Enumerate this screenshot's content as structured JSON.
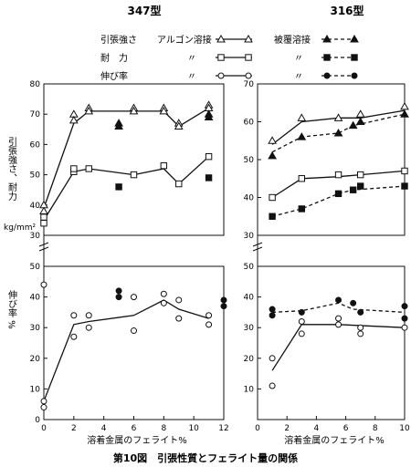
{
  "caption": "第10図　引張性質とフェライト量の関係",
  "legend": {
    "rows": [
      {
        "property": "引張強さ",
        "ditto": "",
        "method_left": "アルゴン溶接",
        "method_right": "被覆溶接"
      },
      {
        "property": "耐　力",
        "ditto": "〃",
        "method_left": "",
        "method_right": "〃"
      },
      {
        "property": "伸び率",
        "ditto": "〃",
        "method_left": "",
        "method_right": "〃"
      }
    ]
  },
  "chart_data": [
    {
      "type": "line",
      "title": "347型",
      "xlabel": "溶着金属のフェライト%",
      "ylabel_upper": "引張強さ、耐力",
      "ylabel_unit": "kg/mm²",
      "ylabel_lower": "伸び率 %",
      "xlim": [
        0,
        12
      ],
      "x_ticks": [
        "0",
        "2",
        "4",
        "6",
        "8",
        "10",
        "12"
      ],
      "upper_ylim": [
        30,
        80
      ],
      "upper_y_ticks": [
        "30",
        "40",
        "50",
        "60",
        "70",
        "80"
      ],
      "lower_ylim": [
        0,
        50
      ],
      "lower_y_ticks": [
        "0",
        "10",
        "20",
        "30",
        "40",
        "50"
      ],
      "series": [
        {
          "name": "引張強さ",
          "method": "アルゴン溶接",
          "marker": "triangle-open",
          "line": "solid",
          "panel": "upper",
          "points": [
            [
              0,
              38
            ],
            [
              0,
              40
            ],
            [
              2,
              70
            ],
            [
              2,
              68
            ],
            [
              3,
              72
            ],
            [
              3,
              71
            ],
            [
              6,
              72
            ],
            [
              6,
              71
            ],
            [
              8,
              72
            ],
            [
              8,
              71
            ],
            [
              9,
              67
            ],
            [
              9,
              66
            ],
            [
              11,
              73
            ],
            [
              11,
              72
            ]
          ],
          "curve_x": [
            0,
            2,
            3,
            6,
            8,
            9,
            11
          ],
          "curve_y": [
            39,
            67,
            71,
            71,
            71,
            66,
            72
          ]
        },
        {
          "name": "引張強さ",
          "method": "被覆溶接",
          "marker": "triangle-filled",
          "line": "none",
          "panel": "upper",
          "points": [
            [
              5,
              67
            ],
            [
              5,
              66
            ],
            [
              11,
              70
            ],
            [
              11,
              69
            ]
          ]
        },
        {
          "name": "耐力",
          "method": "アルゴン溶接",
          "marker": "square-open",
          "line": "solid",
          "panel": "upper",
          "points": [
            [
              0,
              34
            ],
            [
              0,
              36
            ],
            [
              2,
              51
            ],
            [
              2,
              52
            ],
            [
              3,
              52
            ],
            [
              6,
              50
            ],
            [
              8,
              53
            ],
            [
              9,
              47
            ],
            [
              11,
              56
            ]
          ],
          "curve_x": [
            0,
            2,
            3,
            6,
            8,
            9,
            11
          ],
          "curve_y": [
            35,
            51,
            52,
            50,
            52,
            47,
            56
          ]
        },
        {
          "name": "耐力",
          "method": "被覆溶接",
          "marker": "square-filled",
          "line": "none",
          "panel": "upper",
          "points": [
            [
              5,
              46
            ],
            [
              11,
              49
            ]
          ]
        },
        {
          "name": "伸び率",
          "method": "アルゴン溶接",
          "marker": "circle-open",
          "line": "solid",
          "panel": "lower",
          "points": [
            [
              0,
              4
            ],
            [
              0,
              6
            ],
            [
              0,
              44
            ],
            [
              2,
              27
            ],
            [
              2,
              34
            ],
            [
              3,
              30
            ],
            [
              3,
              34
            ],
            [
              6,
              29
            ],
            [
              6,
              40
            ],
            [
              8,
              41
            ],
            [
              8,
              38
            ],
            [
              9,
              33
            ],
            [
              9,
              39
            ],
            [
              11,
              34
            ],
            [
              11,
              31
            ]
          ],
          "curve_x": [
            0,
            2,
            3,
            6,
            8,
            9,
            11
          ],
          "curve_y": [
            6,
            31,
            32,
            34,
            39,
            36,
            33
          ]
        },
        {
          "name": "伸び率",
          "method": "被覆溶接",
          "marker": "circle-filled",
          "line": "none",
          "panel": "lower",
          "points": [
            [
              5,
              42
            ],
            [
              5,
              40
            ],
            [
              12,
              39
            ],
            [
              12,
              37
            ]
          ]
        }
      ]
    },
    {
      "type": "line",
      "title": "316型",
      "xlabel": "溶着金属のフェライト%",
      "xlim": [
        0,
        10
      ],
      "x_ticks": [
        "0",
        "2",
        "4",
        "6",
        "8",
        "10"
      ],
      "upper_ylim": [
        30,
        70
      ],
      "upper_y_ticks": [
        "30",
        "40",
        "50",
        "60",
        "70"
      ],
      "lower_ylim": [
        0,
        50
      ],
      "lower_y_ticks": [
        "10",
        "20",
        "30",
        "40",
        "50"
      ],
      "series": [
        {
          "name": "引張強さ",
          "method": "アルゴン溶接",
          "marker": "triangle-open",
          "line": "solid",
          "panel": "upper",
          "points": [
            [
              1,
              55
            ],
            [
              3,
              61
            ],
            [
              5.5,
              61
            ],
            [
              7,
              62
            ],
            [
              10,
              64
            ]
          ],
          "curve_x": [
            1,
            3,
            5.5,
            7,
            10
          ],
          "curve_y": [
            54,
            60,
            61,
            61,
            63
          ]
        },
        {
          "name": "引張強さ",
          "method": "被覆溶接",
          "marker": "triangle-filled",
          "line": "dashed",
          "panel": "upper",
          "points": [
            [
              1,
              51
            ],
            [
              3,
              56
            ],
            [
              5.5,
              57
            ],
            [
              6.5,
              59
            ],
            [
              7,
              60
            ],
            [
              10,
              62
            ]
          ],
          "curve_x": [
            1,
            3,
            5.5,
            6.5,
            10
          ],
          "curve_y": [
            52,
            56,
            57,
            59,
            62
          ]
        },
        {
          "name": "耐力",
          "method": "アルゴン溶接",
          "marker": "square-open",
          "line": "solid",
          "panel": "upper",
          "points": [
            [
              1,
              40
            ],
            [
              3,
              45
            ],
            [
              5.5,
              46
            ],
            [
              7,
              46
            ],
            [
              10,
              47
            ]
          ],
          "curve_x": [
            1,
            3,
            5.5,
            7,
            10
          ],
          "curve_y": [
            40,
            45,
            45.5,
            46,
            47
          ]
        },
        {
          "name": "耐力",
          "method": "被覆溶接",
          "marker": "square-filled",
          "line": "dashed",
          "panel": "upper",
          "points": [
            [
              1,
              35
            ],
            [
              3,
              37
            ],
            [
              5.5,
              41
            ],
            [
              6.5,
              42
            ],
            [
              7,
              43
            ],
            [
              10,
              43
            ]
          ],
          "curve_x": [
            1,
            3,
            5.5,
            6.5,
            10
          ],
          "curve_y": [
            35,
            37,
            41,
            42,
            43
          ]
        },
        {
          "name": "伸び率",
          "method": "アルゴン溶接",
          "marker": "circle-open",
          "line": "solid",
          "panel": "lower",
          "points": [
            [
              1,
              11
            ],
            [
              1,
              20
            ],
            [
              3,
              28
            ],
            [
              3,
              32
            ],
            [
              5.5,
              31
            ],
            [
              5.5,
              33
            ],
            [
              7,
              28
            ],
            [
              7,
              30
            ],
            [
              10,
              30
            ]
          ],
          "curve_x": [
            1,
            3,
            5.5,
            10
          ],
          "curve_y": [
            16,
            31,
            31,
            30
          ]
        },
        {
          "name": "伸び率",
          "method": "被覆溶接",
          "marker": "circle-filled",
          "line": "dashed",
          "panel": "lower",
          "points": [
            [
              1,
              36
            ],
            [
              1,
              34
            ],
            [
              3,
              35
            ],
            [
              5.5,
              39
            ],
            [
              6.5,
              38
            ],
            [
              7,
              35
            ],
            [
              10,
              37
            ],
            [
              10,
              33
            ]
          ],
          "curve_x": [
            1,
            3,
            5.5,
            6.5,
            10
          ],
          "curve_y": [
            35,
            35.5,
            38,
            36,
            35
          ]
        }
      ]
    }
  ]
}
